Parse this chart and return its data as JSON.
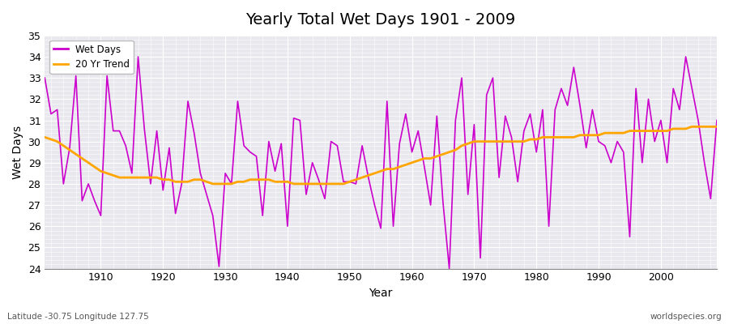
{
  "title": "Yearly Total Wet Days 1901 - 2009",
  "xlabel": "Year",
  "ylabel": "Wet Days",
  "footnote_left": "Latitude -30.75 Longitude 127.75",
  "footnote_right": "worldspecies.org",
  "ylim": [
    24,
    35
  ],
  "yticks": [
    24,
    25,
    26,
    27,
    28,
    29,
    30,
    31,
    32,
    33,
    34,
    35
  ],
  "line_color": "#CC00CC",
  "trend_color": "#FFA500",
  "background_color": "#E8E8EE",
  "wet_days": {
    "1901": 33.0,
    "1902": 31.3,
    "1903": 31.5,
    "1904": 28.0,
    "1905": 29.7,
    "1906": 33.1,
    "1907": 27.2,
    "1908": 28.0,
    "1909": 27.2,
    "1910": 26.5,
    "1911": 33.1,
    "1912": 30.5,
    "1913": 30.5,
    "1914": 29.8,
    "1915": 28.5,
    "1916": 34.0,
    "1917": 30.6,
    "1918": 28.0,
    "1919": 30.5,
    "1920": 27.7,
    "1921": 29.7,
    "1922": 26.6,
    "1923": 28.0,
    "1924": 31.9,
    "1925": 30.4,
    "1926": 28.5,
    "1927": 27.5,
    "1928": 26.5,
    "1929": 24.1,
    "1930": 28.5,
    "1931": 28.0,
    "1932": 31.9,
    "1933": 29.8,
    "1934": 29.5,
    "1935": 29.3,
    "1936": 26.5,
    "1937": 30.0,
    "1938": 28.6,
    "1939": 29.9,
    "1940": 26.0,
    "1941": 31.1,
    "1942": 31.0,
    "1943": 27.5,
    "1944": 29.0,
    "1945": 28.2,
    "1946": 27.3,
    "1947": 30.0,
    "1948": 29.8,
    "1949": 28.1,
    "1950": 28.1,
    "1951": 28.0,
    "1952": 29.8,
    "1953": 28.3,
    "1954": 27.0,
    "1955": 25.9,
    "1956": 31.9,
    "1957": 26.0,
    "1958": 29.9,
    "1959": 31.3,
    "1960": 29.5,
    "1961": 30.5,
    "1962": 28.8,
    "1963": 27.0,
    "1964": 31.2,
    "1965": 27.1,
    "1966": 24.0,
    "1967": 31.0,
    "1968": 33.0,
    "1969": 27.5,
    "1970": 30.8,
    "1971": 24.5,
    "1972": 32.2,
    "1973": 33.0,
    "1974": 28.3,
    "1975": 31.2,
    "1976": 30.2,
    "1977": 28.1,
    "1978": 30.5,
    "1979": 31.3,
    "1980": 29.5,
    "1981": 31.5,
    "1982": 26.0,
    "1983": 31.5,
    "1984": 32.5,
    "1985": 31.7,
    "1986": 33.5,
    "1987": 31.7,
    "1988": 29.7,
    "1989": 31.5,
    "1990": 30.0,
    "1991": 29.8,
    "1992": 29.0,
    "1993": 30.0,
    "1994": 29.5,
    "1995": 25.5,
    "1996": 32.5,
    "1997": 29.0,
    "1998": 32.0,
    "1999": 30.0,
    "2000": 31.0,
    "2001": 29.0,
    "2002": 32.5,
    "2003": 31.5,
    "2004": 34.0,
    "2005": 32.5,
    "2006": 31.0,
    "2007": 29.0,
    "2008": 27.3,
    "2009": 31.0
  },
  "trend_20yr": {
    "1901": 30.2,
    "1902": 30.1,
    "1903": 30.0,
    "1904": 29.8,
    "1905": 29.6,
    "1906": 29.4,
    "1907": 29.2,
    "1908": 29.0,
    "1909": 28.8,
    "1910": 28.6,
    "1911": 28.5,
    "1912": 28.4,
    "1913": 28.3,
    "1914": 28.3,
    "1915": 28.3,
    "1916": 28.3,
    "1917": 28.3,
    "1918": 28.3,
    "1919": 28.3,
    "1920": 28.2,
    "1921": 28.2,
    "1922": 28.1,
    "1923": 28.1,
    "1924": 28.1,
    "1925": 28.2,
    "1926": 28.2,
    "1927": 28.1,
    "1928": 28.0,
    "1929": 28.0,
    "1930": 28.0,
    "1931": 28.0,
    "1932": 28.1,
    "1933": 28.1,
    "1934": 28.2,
    "1935": 28.2,
    "1936": 28.2,
    "1937": 28.2,
    "1938": 28.1,
    "1939": 28.1,
    "1940": 28.1,
    "1941": 28.0,
    "1942": 28.0,
    "1943": 28.0,
    "1944": 28.0,
    "1945": 28.0,
    "1946": 28.0,
    "1947": 28.0,
    "1948": 28.0,
    "1949": 28.0,
    "1950": 28.1,
    "1951": 28.2,
    "1952": 28.3,
    "1953": 28.4,
    "1954": 28.5,
    "1955": 28.6,
    "1956": 28.7,
    "1957": 28.7,
    "1958": 28.8,
    "1959": 28.9,
    "1960": 29.0,
    "1961": 29.1,
    "1962": 29.2,
    "1963": 29.2,
    "1964": 29.3,
    "1965": 29.4,
    "1966": 29.5,
    "1967": 29.6,
    "1968": 29.8,
    "1969": 29.9,
    "1970": 30.0,
    "1971": 30.0,
    "1972": 30.0,
    "1973": 30.0,
    "1974": 30.0,
    "1975": 30.0,
    "1976": 30.0,
    "1977": 30.0,
    "1978": 30.0,
    "1979": 30.1,
    "1980": 30.1,
    "1981": 30.2,
    "1982": 30.2,
    "1983": 30.2,
    "1984": 30.2,
    "1985": 30.2,
    "1986": 30.2,
    "1987": 30.3,
    "1988": 30.3,
    "1989": 30.3,
    "1990": 30.3,
    "1991": 30.4,
    "1992": 30.4,
    "1993": 30.4,
    "1994": 30.4,
    "1995": 30.5,
    "1996": 30.5,
    "1997": 30.5,
    "1998": 30.5,
    "1999": 30.5,
    "2000": 30.5,
    "2001": 30.5,
    "2002": 30.6,
    "2003": 30.6,
    "2004": 30.6,
    "2005": 30.7,
    "2006": 30.7,
    "2007": 30.7,
    "2008": 30.7,
    "2009": 30.7
  }
}
